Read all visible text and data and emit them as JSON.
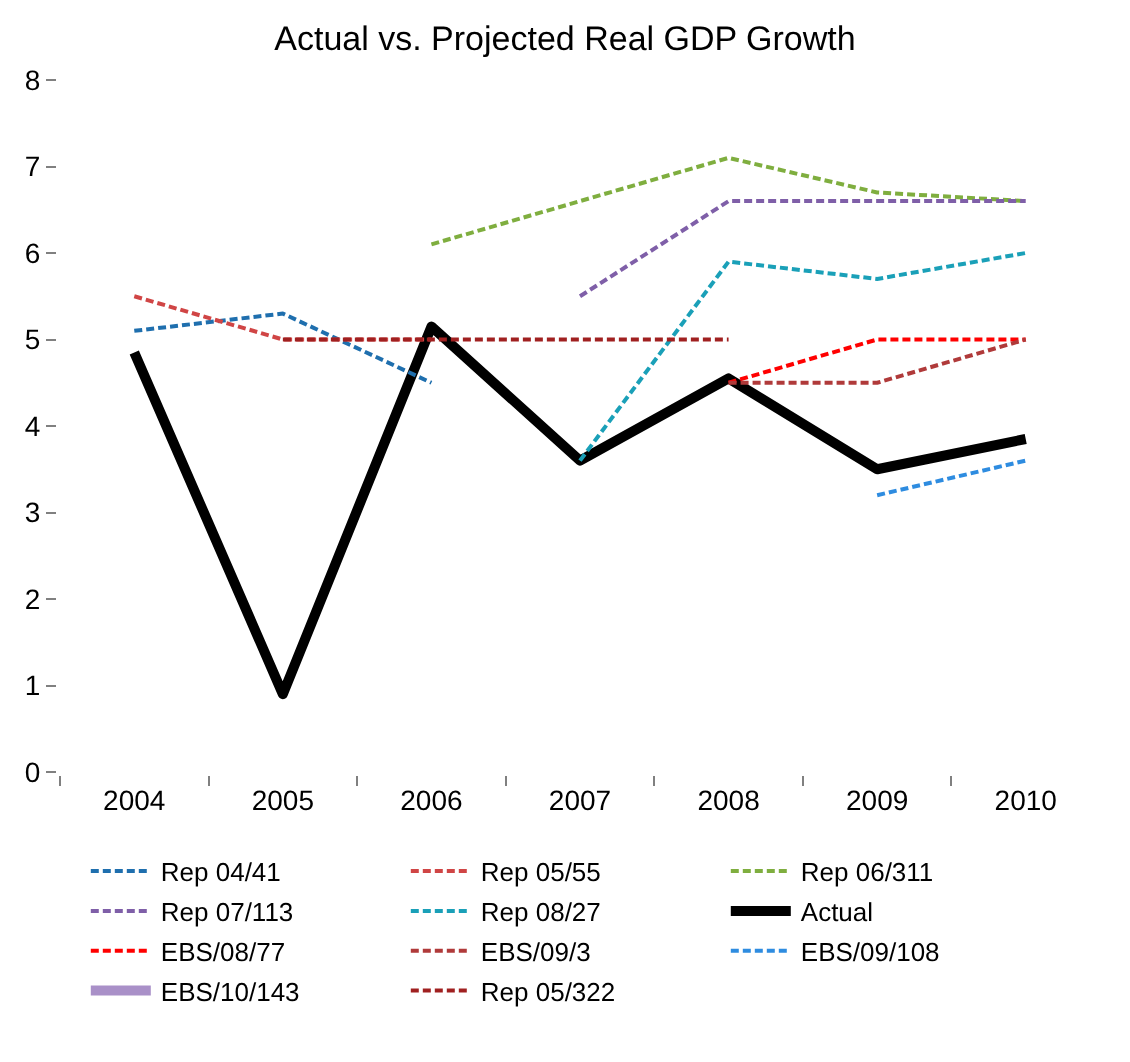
{
  "chart_data": {
    "type": "line",
    "title": "Actual vs. Projected Real GDP Growth",
    "categories": [
      "2004",
      "2005",
      "2006",
      "2007",
      "2008",
      "2009",
      "2010"
    ],
    "ylim": [
      0,
      8
    ],
    "yticks": [
      0,
      1,
      2,
      3,
      4,
      5,
      6,
      7,
      8
    ],
    "legend": "bottom",
    "marker": "none",
    "series": [
      {
        "name": "Rep 04/41",
        "color": "#1f6fae",
        "line_style": "dashed",
        "values": [
          5.1,
          5.3,
          4.5,
          null,
          null,
          null,
          null
        ]
      },
      {
        "name": "Rep 05/55",
        "color": "#d04545",
        "line_style": "dashed",
        "values": [
          5.5,
          5.0,
          5.0,
          null,
          null,
          null,
          null
        ]
      },
      {
        "name": "Rep 06/311",
        "color": "#7fae3f",
        "line_style": "dashed",
        "values": [
          null,
          null,
          6.1,
          6.6,
          7.1,
          6.7,
          6.6
        ]
      },
      {
        "name": "Rep 07/113",
        "color": "#7f5fa8",
        "line_style": "dashed",
        "values": [
          null,
          null,
          null,
          5.5,
          6.6,
          6.6,
          6.6
        ]
      },
      {
        "name": "Rep 08/27",
        "color": "#1aa0b8",
        "line_style": "dashed",
        "values": [
          null,
          null,
          null,
          3.6,
          5.9,
          5.7,
          6.0
        ]
      },
      {
        "name": "Actual",
        "color": "#000000",
        "line_style": "solid",
        "values": [
          4.85,
          0.9,
          5.15,
          3.6,
          4.55,
          3.5,
          3.85
        ]
      },
      {
        "name": "EBS/08/77",
        "color": "#ff0000",
        "line_style": "dashed",
        "values": [
          null,
          null,
          null,
          null,
          4.5,
          5.0,
          5.0
        ]
      },
      {
        "name": "EBS/09/3",
        "color": "#b03a3a",
        "line_style": "dashed",
        "values": [
          null,
          null,
          null,
          null,
          4.5,
          4.5,
          5.0
        ]
      },
      {
        "name": "EBS/09/108",
        "color": "#2e8ce0",
        "line_style": "dashed",
        "values": [
          null,
          null,
          null,
          null,
          null,
          3.2,
          3.6
        ]
      },
      {
        "name": "EBS/10/143",
        "color": "#a990c8",
        "line_style": "solid",
        "values": [
          null,
          null,
          null,
          null,
          null,
          null,
          null
        ]
      },
      {
        "name": "Rep 05/322",
        "color": "#a02020",
        "line_style": "dashed",
        "values": [
          null,
          5.0,
          5.0,
          5.0,
          5.0,
          null,
          null
        ]
      }
    ]
  }
}
